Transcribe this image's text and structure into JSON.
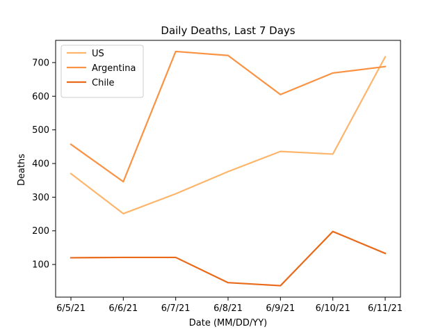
{
  "chart_data": {
    "type": "line",
    "title": "Daily Deaths, Last 7 Days",
    "xlabel": "Date (MM/DD/YY)",
    "ylabel": "Deaths",
    "categories": [
      "6/5/21",
      "6/6/21",
      "6/7/21",
      "6/8/21",
      "6/9/21",
      "6/10/21",
      "6/11/21"
    ],
    "ylim": [
      3,
      766
    ],
    "yticks": [
      100,
      200,
      300,
      400,
      500,
      600,
      700
    ],
    "grid": false,
    "legend_position": "top-left",
    "series": [
      {
        "name": "US",
        "color": "#fdb56b",
        "values": [
          370,
          251,
          310,
          376,
          436,
          428,
          717
        ]
      },
      {
        "name": "Argentina",
        "color": "#fa9243",
        "values": [
          457,
          346,
          733,
          721,
          605,
          669,
          688
        ]
      },
      {
        "name": "Chile",
        "color": "#e86a1a",
        "values": [
          120,
          121,
          121,
          46,
          37,
          198,
          133
        ]
      }
    ]
  }
}
